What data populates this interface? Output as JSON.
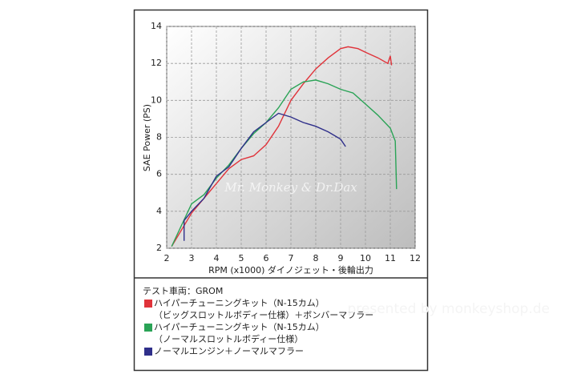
{
  "chart_data": {
    "type": "line",
    "x_label": "RPM (x1000) ダイノジェット・後輪出力",
    "y_label": "SAE Power (PS)",
    "watermark": "Mr. Monkey & Dr.Dax",
    "credit": "presented by monkeyshop.de",
    "legend_title": "テスト車両：GROM",
    "xlim": [
      2,
      12
    ],
    "xticks": [
      2,
      3,
      4,
      5,
      6,
      7,
      8,
      9,
      10,
      11,
      12
    ],
    "ylim": [
      2,
      14
    ],
    "yticks": [
      2,
      4,
      6,
      8,
      10,
      12,
      14
    ],
    "grid": true,
    "series": [
      {
        "name": "ハイパーチューニングキット（N-15カム）",
        "detail": "（ビッグスロットルボディー仕様）＋ボンバーマフラー",
        "color": "#e0333a",
        "x": [
          2.2,
          3,
          4,
          4.5,
          5,
          5.5,
          6,
          6.5,
          7,
          7.5,
          8,
          8.5,
          9,
          9.3,
          9.7,
          10,
          10.5,
          10.9,
          11,
          11.05
        ],
        "values": [
          2.1,
          3.9,
          5.5,
          6.3,
          6.8,
          7.0,
          7.6,
          8.6,
          10.0,
          10.9,
          11.7,
          12.3,
          12.8,
          12.9,
          12.8,
          12.6,
          12.3,
          12.0,
          12.4,
          11.9
        ]
      },
      {
        "name": "ハイパーチューニングキット（N-15カム）",
        "detail": "（ノーマルスロットルボディー仕様）",
        "color": "#2aa356",
        "x": [
          2.2,
          3,
          3.5,
          4,
          4.5,
          5,
          5.5,
          6,
          6.5,
          7,
          7.5,
          8,
          8.5,
          9,
          9.5,
          10,
          10.5,
          11,
          11.2,
          11.25
        ],
        "values": [
          2.1,
          4.4,
          4.9,
          5.8,
          6.5,
          7.4,
          8.2,
          8.8,
          9.6,
          10.6,
          11.0,
          11.1,
          10.9,
          10.6,
          10.4,
          9.8,
          9.2,
          8.5,
          7.8,
          5.2
        ]
      },
      {
        "name": "ノーマルエンジン＋ノーマルマフラー",
        "color": "#2f2f8a",
        "x": [
          2.7,
          2.7,
          3,
          3.5,
          4,
          4.5,
          5,
          5.5,
          6,
          6.5,
          7,
          7.5,
          8,
          8.5,
          9,
          9.2
        ],
        "values": [
          2.4,
          3.5,
          4.0,
          4.7,
          5.9,
          6.4,
          7.4,
          8.3,
          8.8,
          9.3,
          9.1,
          8.8,
          8.6,
          8.3,
          7.9,
          7.5
        ]
      }
    ]
  }
}
